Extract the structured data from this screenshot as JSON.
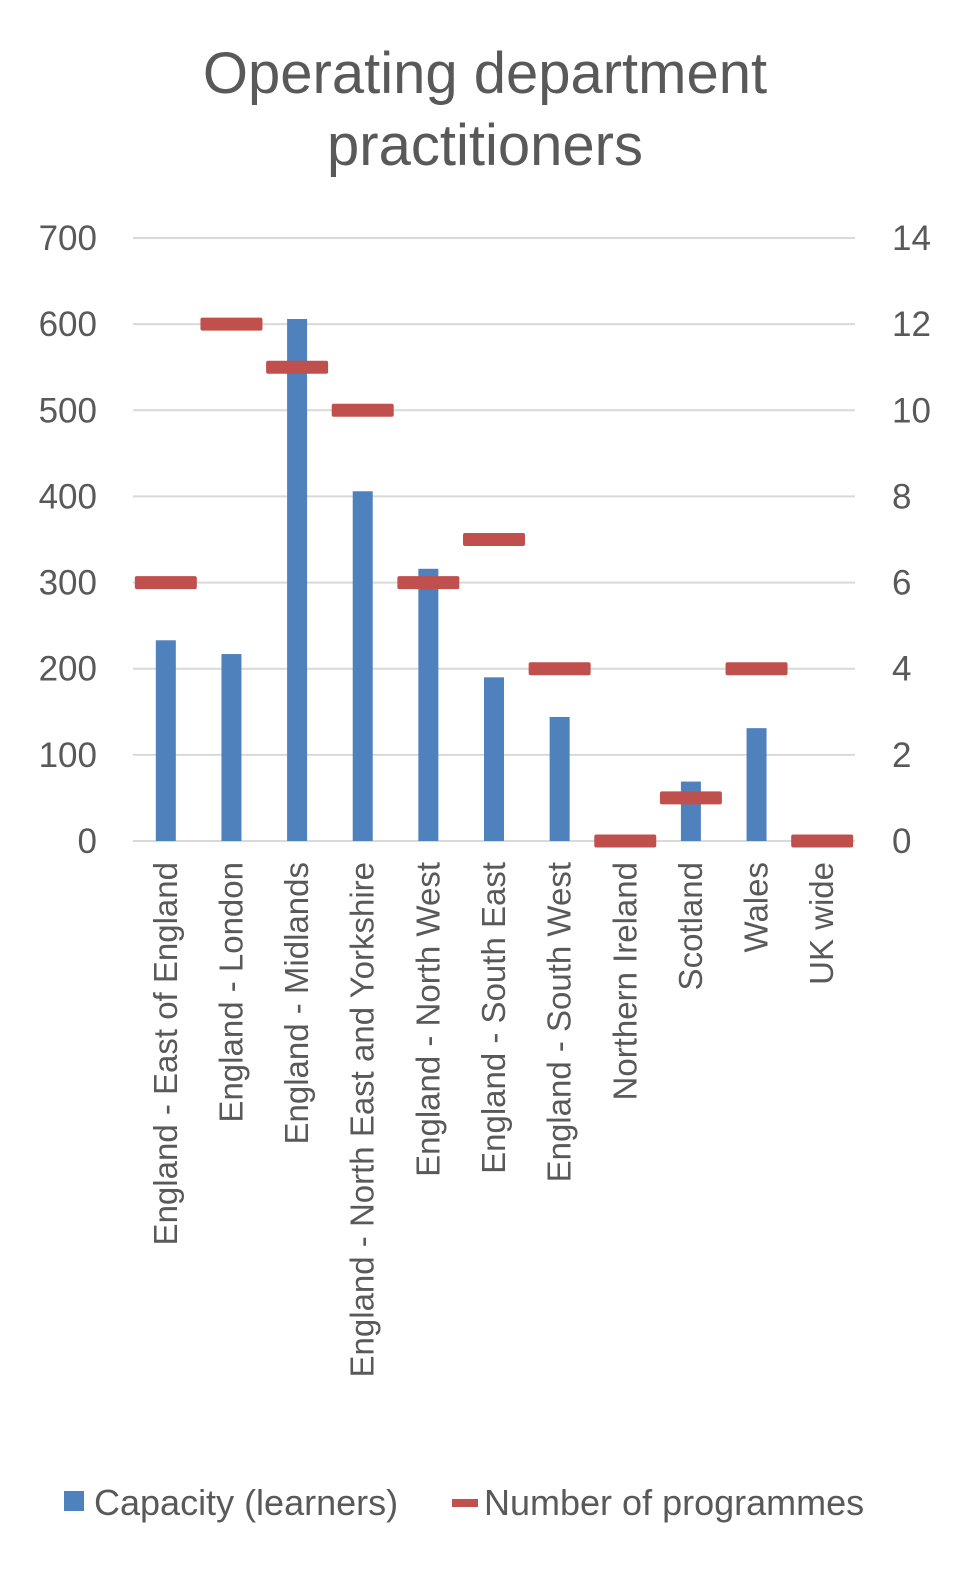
{
  "chart_data": {
    "type": "bar",
    "title_lines": [
      "Operating department",
      "practitioners"
    ],
    "categories": [
      "England - East of England",
      "England - London",
      "England - Midlands",
      "England - North East and Yorkshire",
      "England - North West",
      "England - South East",
      "England - South West",
      "Northern Ireland",
      "Scotland",
      "Wales",
      "UK wide"
    ],
    "series": [
      {
        "name": "Capacity (learners)",
        "type": "bar",
        "axis": "left",
        "color": "#4F81BD",
        "values": [
          233,
          217,
          606,
          406,
          316,
          190,
          144,
          0,
          69,
          131,
          0
        ]
      },
      {
        "name": "Number of programmes",
        "type": "marker",
        "axis": "right",
        "color": "#C0504D",
        "values": [
          6,
          12,
          11,
          10,
          6,
          7,
          4,
          0,
          1,
          4,
          0
        ]
      }
    ],
    "y_left": {
      "min": 0,
      "max": 700,
      "ticks": [
        "0",
        "100",
        "200",
        "300",
        "400",
        "500",
        "600",
        "700"
      ]
    },
    "y_right": {
      "min": 0,
      "max": 14,
      "ticks": [
        "0",
        "2",
        "4",
        "6",
        "8",
        "10",
        "12",
        "14"
      ]
    },
    "grid": true,
    "gridline_color": "#D9D9D9",
    "legend_position": "bottom"
  }
}
